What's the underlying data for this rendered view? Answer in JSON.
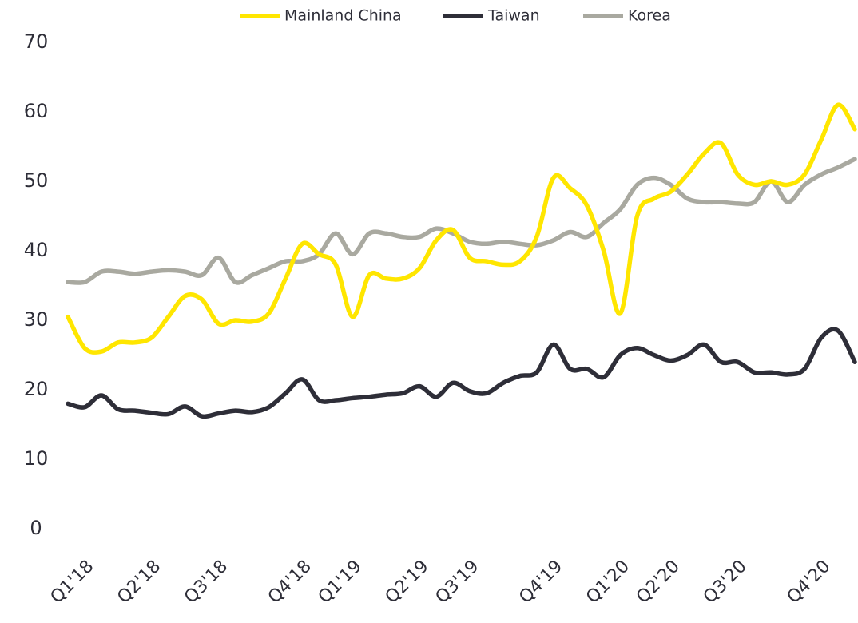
{
  "chart_data": {
    "type": "line",
    "categories": [
      null,
      "Q1'18",
      null,
      null,
      null,
      "Q2'18",
      null,
      null,
      null,
      "Q3'18",
      null,
      null,
      null,
      null,
      "Q4'18",
      null,
      null,
      "Q1'19",
      null,
      null,
      null,
      "Q2'19",
      null,
      null,
      "Q3'19",
      null,
      null,
      null,
      null,
      "Q4'19",
      null,
      null,
      null,
      "Q1'20",
      null,
      null,
      "Q2'20",
      null,
      null,
      null,
      "Q3'20",
      null,
      null,
      null,
      null,
      "Q4'20",
      null,
      null
    ],
    "series": [
      {
        "name": "Mainland China",
        "color": "#ffe600",
        "values": [
          30.5,
          26,
          25.5,
          26.8,
          26.8,
          27.5,
          30.5,
          33.5,
          33,
          29.5,
          30,
          29.8,
          31,
          36,
          41,
          39.5,
          38,
          30.5,
          36.5,
          36,
          36,
          37.5,
          41.5,
          43,
          39,
          38.5,
          38,
          38.5,
          42,
          50.5,
          49,
          46.5,
          40,
          31,
          45,
          47.5,
          48.5,
          51,
          54,
          55.5,
          51,
          49.5,
          50,
          49.5,
          51,
          56,
          61,
          57.5
        ]
      },
      {
        "name": "Taiwan",
        "color": "#2e2e38",
        "values": [
          18,
          17.5,
          19.2,
          17.2,
          17,
          16.7,
          16.5,
          17.6,
          16.2,
          16.6,
          17,
          16.8,
          17.5,
          19.5,
          21.5,
          18.5,
          18.5,
          18.8,
          19,
          19.3,
          19.5,
          20.5,
          19,
          21,
          19.8,
          19.5,
          21,
          22,
          22.5,
          26.5,
          23,
          23,
          21.8,
          25,
          26,
          25,
          24.2,
          25,
          26.5,
          24,
          24,
          22.5,
          22.5,
          22.2,
          23,
          27.5,
          28.5,
          24
        ]
      },
      {
        "name": "Korea",
        "color": "#a9a9a0",
        "values": [
          35.5,
          35.5,
          37,
          37,
          36.7,
          37,
          37.2,
          37,
          36.5,
          39,
          35.5,
          36.5,
          37.5,
          38.5,
          38.5,
          39.5,
          42.5,
          39.5,
          42.5,
          42.5,
          42,
          42,
          43.2,
          42.5,
          41.3,
          41,
          41.3,
          41,
          40.8,
          41.5,
          42.7,
          42,
          44,
          46,
          49.5,
          50.5,
          49.5,
          47.5,
          47,
          47,
          46.8,
          47,
          50,
          47,
          49.5,
          51,
          52,
          53.2
        ]
      }
    ],
    "ylim": [
      0,
      70
    ],
    "yticks": [
      0,
      10,
      20,
      30,
      40,
      50,
      60,
      70
    ],
    "grid": false,
    "legend": "top"
  }
}
